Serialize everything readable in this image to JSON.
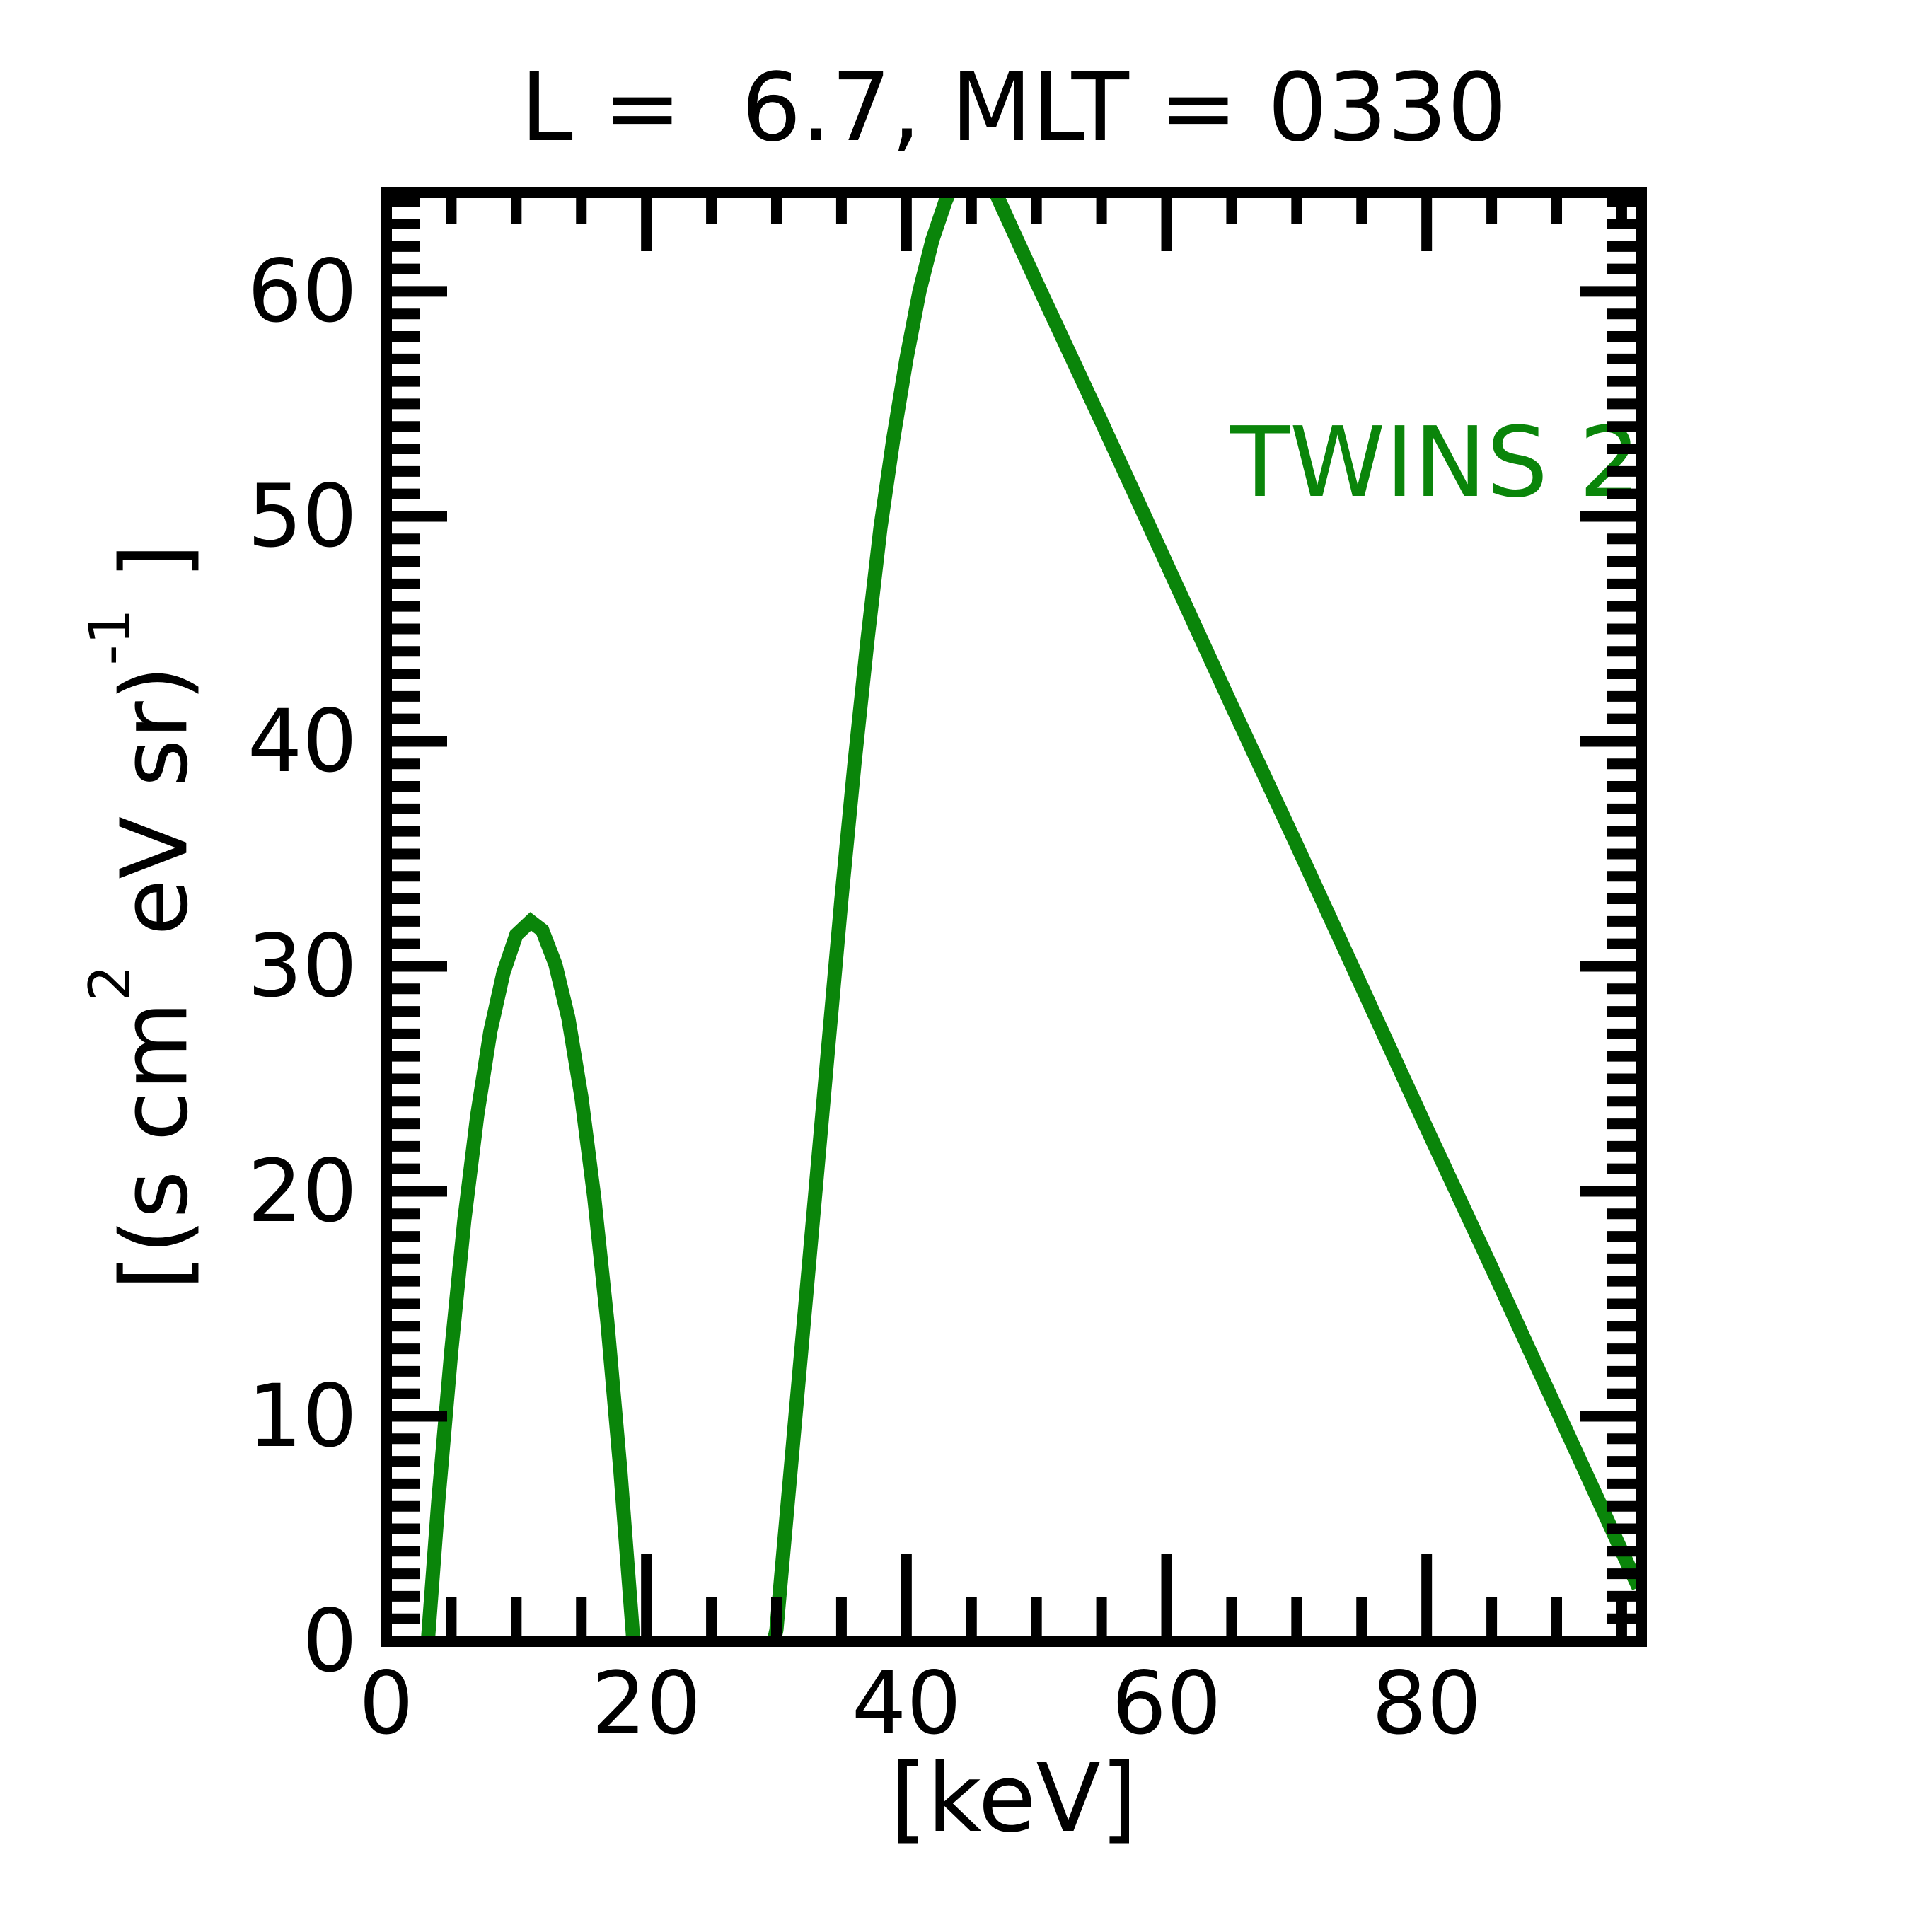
{
  "colors": {
    "background": "#ffffff",
    "axis": "#000000",
    "curve_green": "#0a850a"
  },
  "chart_data": {
    "type": "line",
    "title": "L =  6.7, MLT = 0330",
    "xlabel": "[keV]",
    "ylabel_plain": "[(s cm2 eV sr)-1 ]",
    "ylabel_parts": {
      "a": "[(s cm",
      "sup1": "2",
      "b": " eV sr)",
      "sup2": "-1",
      "c": " ]"
    },
    "legend_position": "inside top-right",
    "grid": false,
    "xlim": [
      0,
      96.5
    ],
    "ylim": [
      0,
      64.4
    ],
    "xticks_major": [
      0,
      20,
      40,
      60,
      80
    ],
    "xtick_minor_step": 5,
    "yticks_major": [
      0,
      10,
      20,
      30,
      40,
      50,
      60
    ],
    "ytick_minor_step": 1,
    "series": [
      {
        "name": "TWINS 2",
        "color": "#0a850a",
        "points": [
          [
            2.8,
            -2
          ],
          [
            3.2,
            0
          ],
          [
            4,
            6.2
          ],
          [
            5,
            12.9
          ],
          [
            6,
            18.7
          ],
          [
            7,
            23.4
          ],
          [
            8,
            27.1
          ],
          [
            9,
            29.7
          ],
          [
            10,
            31.4
          ],
          [
            11.1,
            32
          ],
          [
            12,
            31.6
          ],
          [
            13,
            30.1
          ],
          [
            14,
            27.7
          ],
          [
            15,
            24.2
          ],
          [
            16,
            19.7
          ],
          [
            17,
            14.2
          ],
          [
            18,
            7.6
          ],
          [
            19,
            0
          ],
          [
            20,
            -4
          ],
          [
            24,
            -6
          ],
          [
            28,
            -4
          ],
          [
            29.3,
            -1
          ],
          [
            29.8,
            0
          ],
          [
            30,
            0.5
          ],
          [
            31,
            7
          ],
          [
            32,
            13.5
          ],
          [
            33,
            20
          ],
          [
            34,
            26.5
          ],
          [
            35,
            33
          ],
          [
            36,
            39
          ],
          [
            37,
            44.5
          ],
          [
            38,
            49.5
          ],
          [
            39,
            53.5
          ],
          [
            40,
            57
          ],
          [
            41,
            60
          ],
          [
            42,
            62.3
          ],
          [
            43,
            64.0
          ],
          [
            43.5,
            64.7
          ],
          [
            44,
            65.5
          ],
          [
            45,
            66.2
          ],
          [
            46,
            65.3
          ],
          [
            47,
            64.2
          ],
          [
            50,
            60.4
          ],
          [
            55,
            54.2
          ],
          [
            60,
            47.9
          ],
          [
            65,
            41.6
          ],
          [
            70,
            35.4
          ],
          [
            75,
            29.1
          ],
          [
            80,
            22.8
          ],
          [
            85,
            16.6
          ],
          [
            90,
            10.3
          ],
          [
            95,
            4.0
          ],
          [
            96.3,
            2.4
          ]
        ]
      }
    ]
  }
}
